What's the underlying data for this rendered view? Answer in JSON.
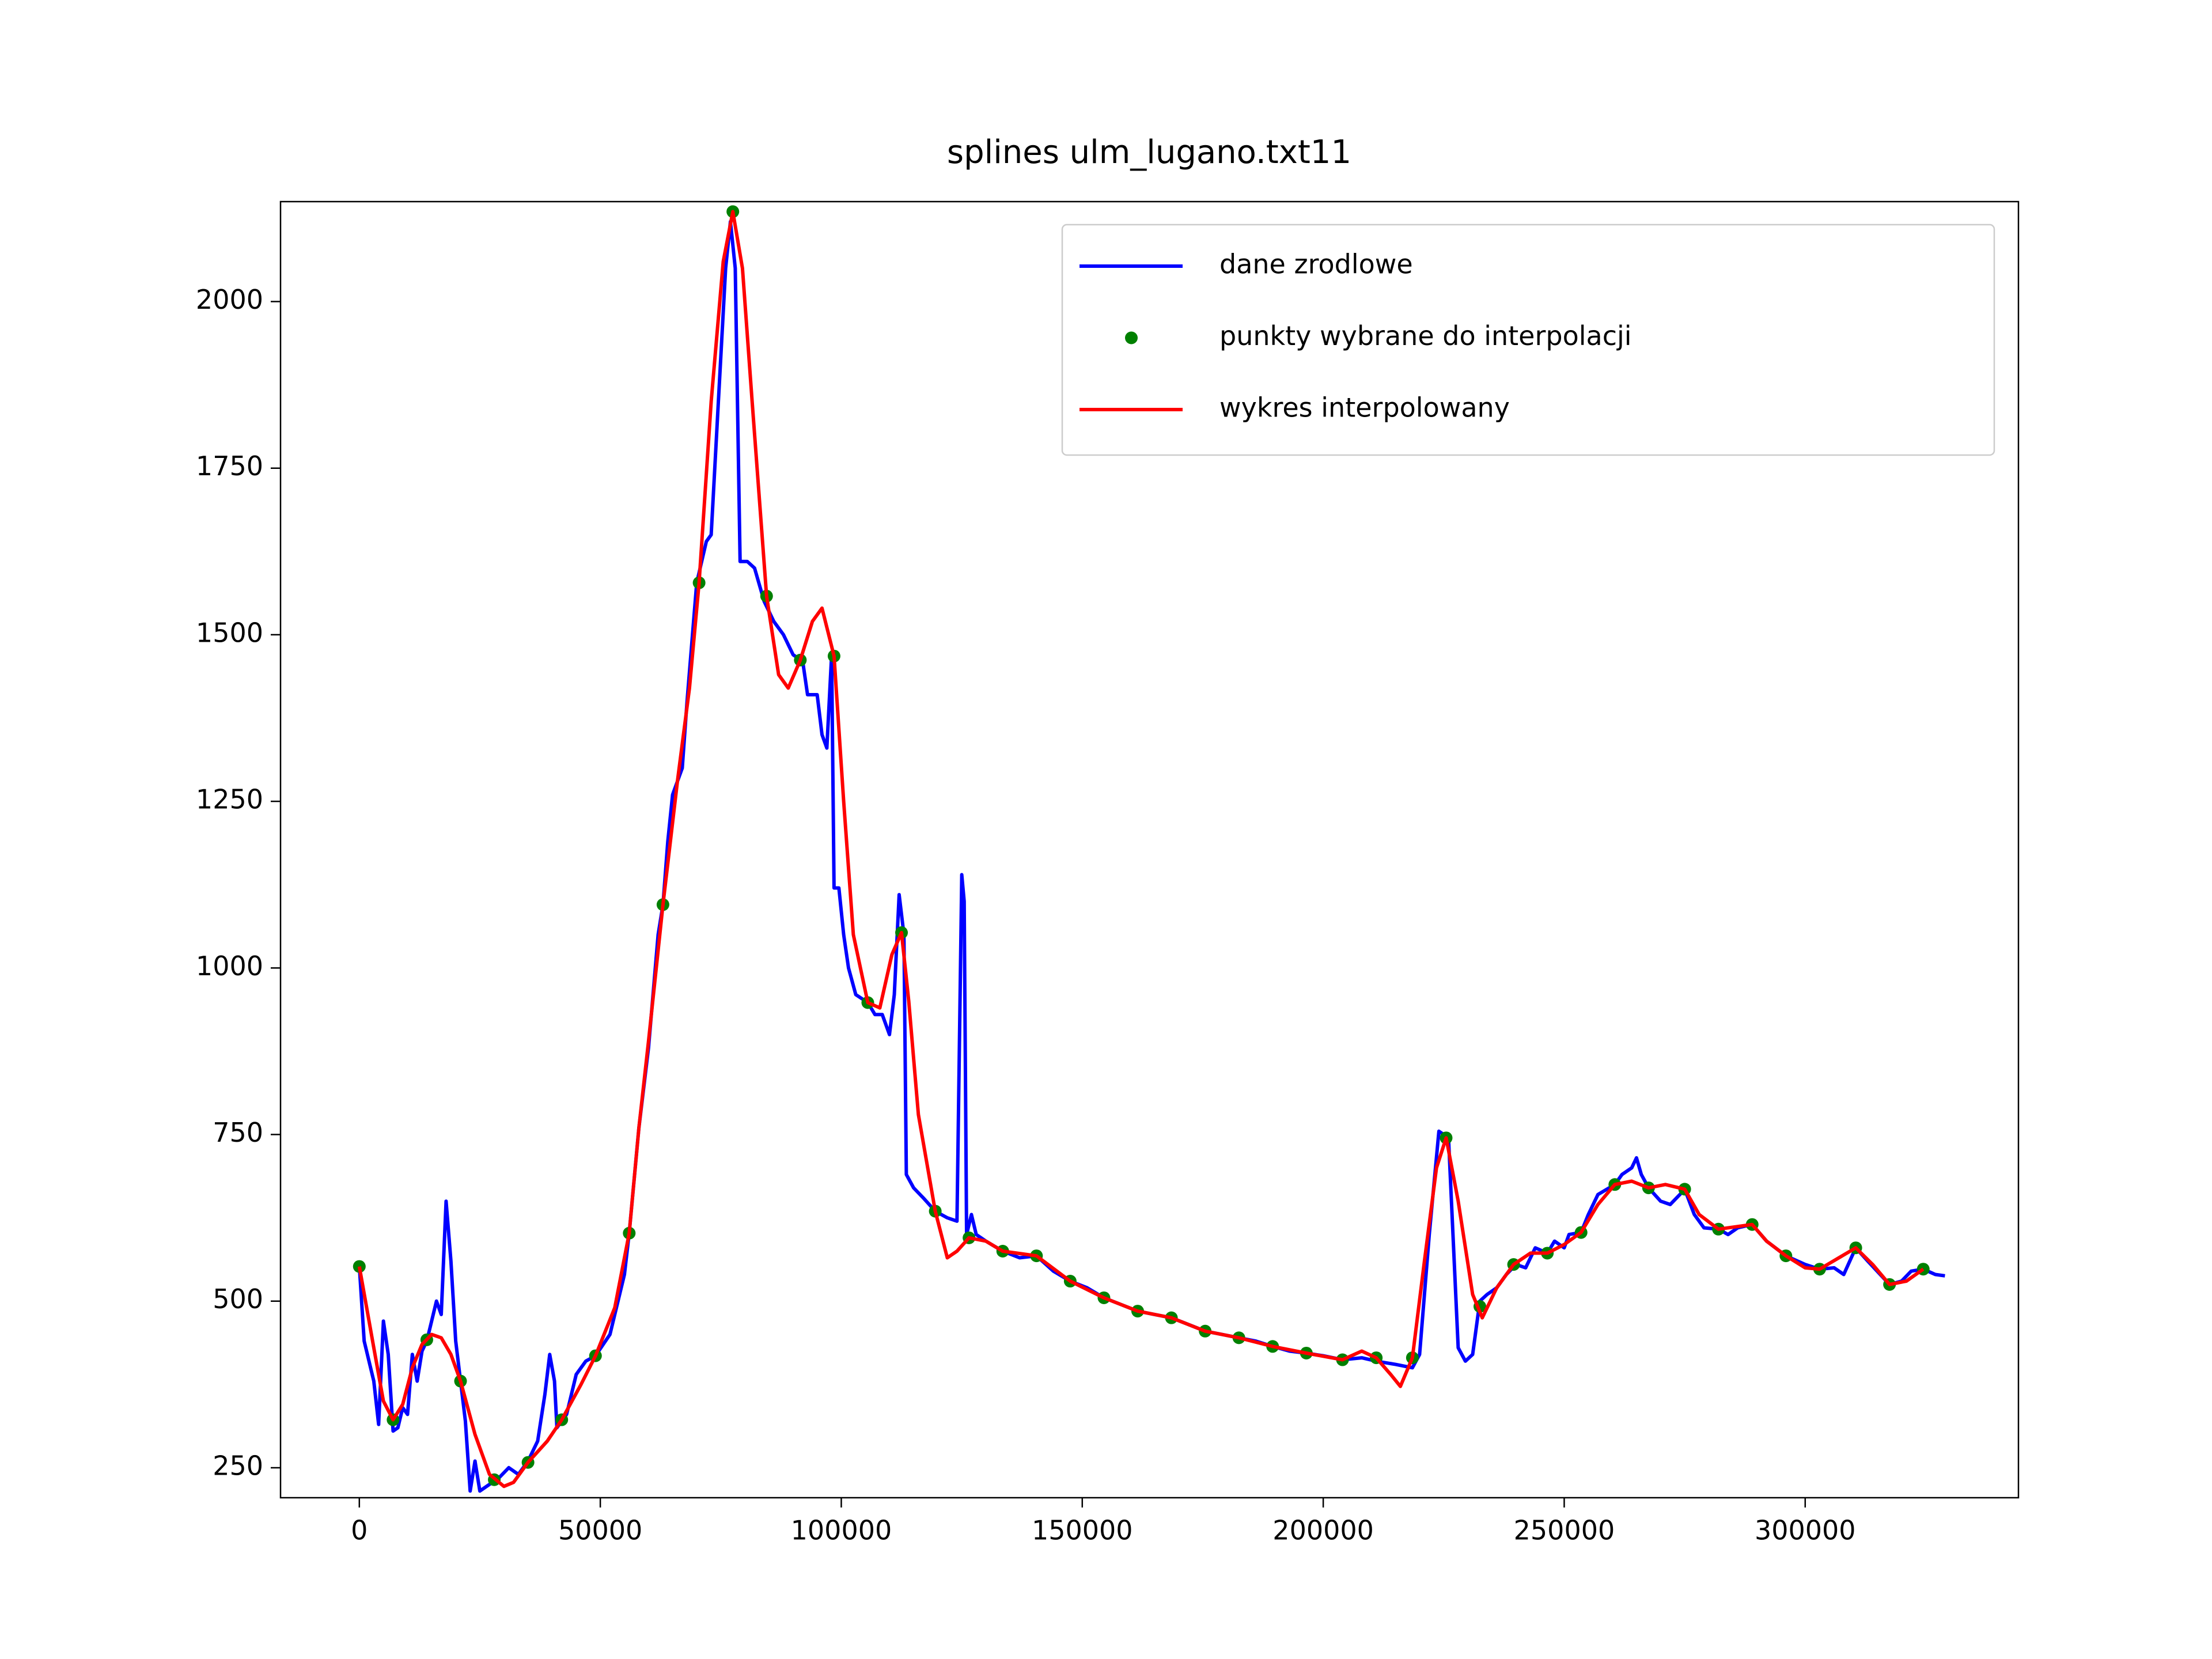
{
  "chart_data": {
    "type": "line",
    "title": "splines ulm_lugano.txt11",
    "xlim": [
      -16350,
      344250
    ],
    "ylim": [
      205,
      2150
    ],
    "xticks": [
      0,
      50000,
      100000,
      150000,
      200000,
      250000,
      300000
    ],
    "yticks": [
      250,
      500,
      750,
      1000,
      1250,
      1500,
      1750,
      2000
    ],
    "legend": "upper right",
    "series": [
      {
        "name": "dane zrodlowe",
        "color": "#0000ff",
        "mode": "lines",
        "x": [
          0,
          1000,
          3000,
          4000,
          5000,
          6000,
          7000,
          8000,
          9000,
          10000,
          11000,
          12000,
          13000,
          14000,
          16000,
          17000,
          18000,
          19000,
          20000,
          21000,
          22000,
          23000,
          24000,
          25000,
          27000,
          29000,
          31000,
          33000,
          35000,
          37000,
          38500,
          39500,
          40500,
          41000,
          43000,
          45000,
          47000,
          49000,
          52000,
          55000,
          56000,
          58000,
          60000,
          62000,
          63000,
          64000,
          65000,
          67000,
          68000,
          70000,
          72000,
          73000,
          74500,
          76000,
          77000,
          78000,
          79000,
          80500,
          82000,
          84000,
          86000,
          88000,
          90000,
          92000,
          93000,
          95000,
          96000,
          97000,
          98000,
          98500,
          99500,
          100500,
          101500,
          103000,
          105500,
          107000,
          108500,
          110000,
          111000,
          112000,
          113000,
          113500,
          115000,
          117000,
          119500,
          122000,
          124000,
          125000,
          125500,
          126000,
          127000,
          128000,
          130000,
          133500,
          137000,
          140500,
          144000,
          147500,
          151000,
          154500,
          158000,
          161500,
          165000,
          168500,
          172000,
          175500,
          179000,
          182500,
          186000,
          189500,
          193000,
          196500,
          200000,
          204000,
          208000,
          211000,
          215000,
          218500,
          220000,
          222000,
          224000,
          226000,
          228000,
          229500,
          231000,
          232500,
          234000,
          236000,
          238000,
          240000,
          242000,
          244000,
          246500,
          248000,
          250000,
          251000,
          253500,
          255000,
          257000,
          260500,
          262000,
          264000,
          265000,
          266000,
          267500,
          270000,
          272000,
          274000,
          275000,
          277000,
          279000,
          282000,
          284000,
          286000,
          289000,
          292000,
          296000,
          300000,
          303000,
          306000,
          308000,
          310500,
          313000,
          317500,
          320000,
          322000,
          324500,
          327000,
          329000
        ],
        "values": [
          552,
          440,
          380,
          315,
          470,
          420,
          305,
          310,
          340,
          330,
          420,
          380,
          425,
          440,
          500,
          480,
          650,
          560,
          440,
          380,
          320,
          215,
          260,
          215,
          225,
          235,
          250,
          240,
          260,
          290,
          360,
          420,
          380,
          310,
          330,
          390,
          410,
          418,
          450,
          540,
          602,
          760,
          880,
          1050,
          1095,
          1190,
          1260,
          1300,
          1400,
          1578,
          1640,
          1650,
          1850,
          2050,
          2120,
          2050,
          1610,
          1610,
          1600,
          1550,
          1520,
          1500,
          1470,
          1460,
          1410,
          1410,
          1350,
          1330,
          1470,
          1120,
          1120,
          1050,
          1000,
          960,
          948,
          930,
          930,
          900,
          960,
          1110,
          1050,
          690,
          670,
          655,
          635,
          625,
          620,
          1140,
          1100,
          600,
          630,
          600,
          590,
          575,
          565,
          568,
          545,
          530,
          520,
          505,
          495,
          485,
          480,
          475,
          465,
          455,
          450,
          445,
          440,
          432,
          425,
          422,
          418,
          412,
          415,
          410,
          405,
          400,
          420,
          600,
          755,
          745,
          430,
          410,
          420,
          500,
          510,
          520,
          540,
          555,
          550,
          580,
          572,
          590,
          580,
          600,
          603,
          630,
          660,
          675,
          690,
          700,
          715,
          690,
          670,
          650,
          645,
          660,
          668,
          630,
          610,
          608,
          600,
          610,
          615,
          590,
          568,
          555,
          548,
          550,
          540,
          580,
          560,
          525,
          530,
          545,
          548,
          540,
          538
        ]
      },
      {
        "name": "punkty wybrane do interpolacji",
        "color": "#008000",
        "mode": "markers",
        "x": [
          0,
          7000,
          14000,
          21000,
          28000,
          35000,
          42000,
          49000,
          56000,
          63000,
          70500,
          77500,
          84500,
          91500,
          98500,
          105500,
          112500,
          119500,
          126500,
          133500,
          140500,
          147500,
          154500,
          161500,
          168500,
          175500,
          182500,
          189500,
          196500,
          204000,
          211000,
          218500,
          225500,
          232500,
          239500,
          246500,
          253500,
          260500,
          267500,
          275000,
          282000,
          289000,
          296000,
          303000,
          310500,
          317500,
          324500
        ],
        "values": [
          552,
          322,
          442,
          380,
          232,
          258,
          322,
          418,
          602,
          1095,
          1578,
          2135,
          1558,
          1462,
          1468,
          948,
          1053,
          635,
          595,
          575,
          568,
          530,
          505,
          485,
          475,
          455,
          445,
          432,
          422,
          412,
          415,
          415,
          745,
          492,
          555,
          572,
          603,
          675,
          670,
          668,
          608,
          615,
          568,
          548,
          580,
          525,
          548
        ]
      },
      {
        "name": "wykres interpolowany",
        "color": "#ff0000",
        "mode": "lines",
        "x": [
          0,
          3000,
          5000,
          7000,
          9000,
          11000,
          13000,
          15000,
          17000,
          19000,
          21000,
          24000,
          27000,
          30000,
          32000,
          35000,
          39000,
          42000,
          46000,
          49000,
          53000,
          56000,
          58000,
          60000,
          63000,
          66000,
          68500,
          70500,
          73000,
          75500,
          77500,
          79500,
          81500,
          84500,
          87000,
          89000,
          91500,
          94000,
          96000,
          98500,
          100500,
          102500,
          105500,
          108000,
          110500,
          112500,
          114000,
          116000,
          119500,
          122000,
          124000,
          126500,
          130000,
          133500,
          140500,
          147500,
          154500,
          161500,
          168500,
          175500,
          182500,
          189500,
          196500,
          204000,
          208000,
          211000,
          214000,
          216000,
          218500,
          221000,
          223500,
          225500,
          228000,
          231000,
          233000,
          236000,
          239500,
          243000,
          246500,
          250000,
          253500,
          257000,
          260500,
          264000,
          267500,
          271000,
          275000,
          278000,
          282000,
          286000,
          289000,
          292000,
          296000,
          300000,
          303000,
          307000,
          310500,
          314000,
          317500,
          321000,
          324500
        ],
        "values": [
          552,
          430,
          350,
          322,
          345,
          400,
          435,
          450,
          445,
          420,
          380,
          300,
          240,
          222,
          228,
          258,
          290,
          322,
          375,
          418,
          490,
          602,
          760,
          890,
          1095,
          1280,
          1420,
          1578,
          1850,
          2060,
          2135,
          2050,
          1850,
          1558,
          1440,
          1420,
          1462,
          1520,
          1540,
          1468,
          1250,
          1050,
          948,
          940,
          1020,
          1053,
          950,
          780,
          635,
          565,
          575,
          595,
          590,
          575,
          568,
          530,
          505,
          485,
          475,
          455,
          445,
          432,
          422,
          412,
          425,
          415,
          390,
          372,
          415,
          560,
          700,
          745,
          650,
          510,
          475,
          520,
          555,
          572,
          572,
          585,
          603,
          645,
          675,
          680,
          670,
          675,
          668,
          630,
          608,
          612,
          615,
          590,
          568,
          550,
          548,
          565,
          580,
          555,
          525,
          530,
          548
        ]
      }
    ]
  }
}
